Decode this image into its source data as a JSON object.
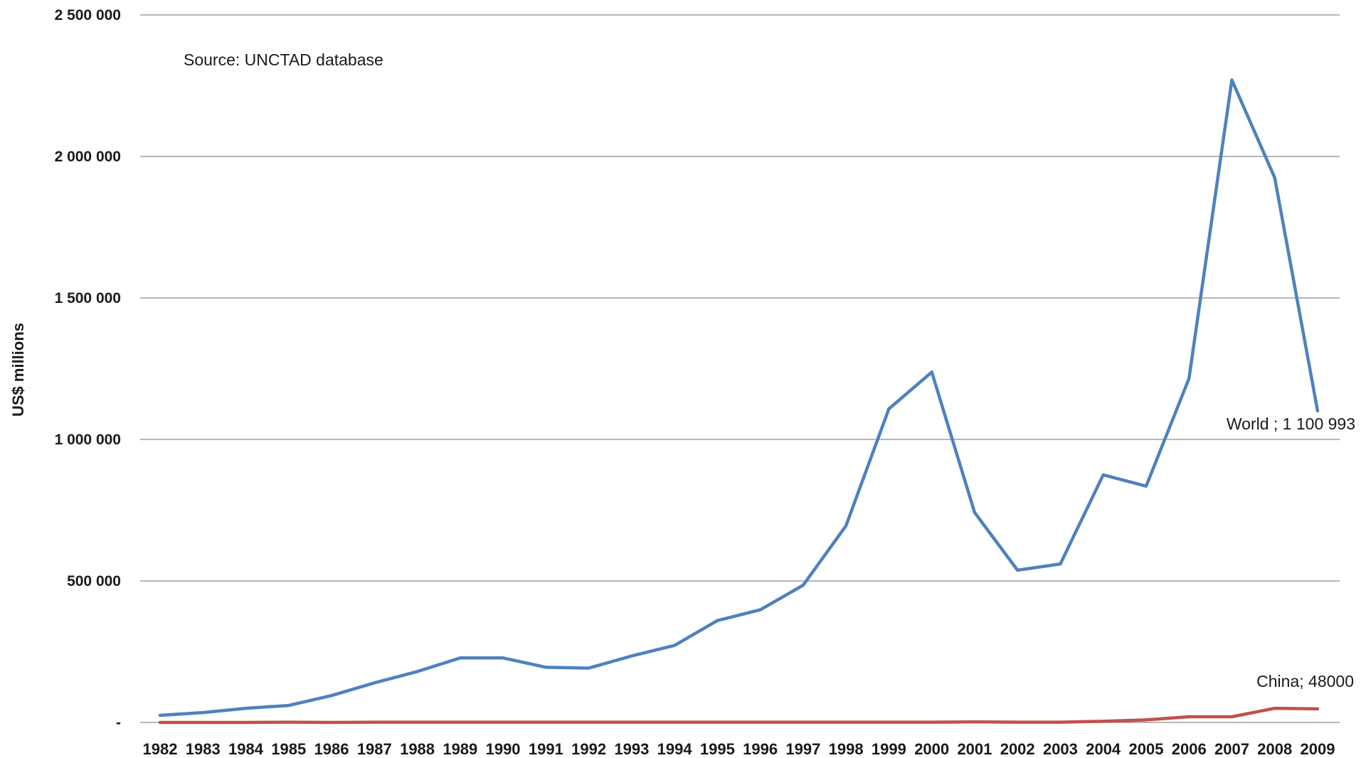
{
  "chart_data": {
    "type": "line",
    "ylabel": "US$ millions",
    "xlabel": "",
    "ylim": [
      0,
      2500000
    ],
    "yticks": [
      0,
      500000,
      1000000,
      1500000,
      2000000,
      2500000
    ],
    "ytick_labels": [
      "-",
      "500 000",
      "1 000 000",
      "1 500 000",
      "2 000 000",
      "2 500 000"
    ],
    "grid": true,
    "categories": [
      "1982",
      "1983",
      "1984",
      "1985",
      "1986",
      "1987",
      "1988",
      "1989",
      "1990",
      "1991",
      "1992",
      "1993",
      "1994",
      "1995",
      "1996",
      "1997",
      "1998",
      "1999",
      "2000",
      "2001",
      "2002",
      "2003",
      "2004",
      "2005",
      "2006",
      "2007",
      "2008",
      "2009"
    ],
    "series": [
      {
        "name": "World",
        "color": "#4f81bd",
        "values": [
          25000,
          35000,
          50000,
          60000,
          95000,
          140000,
          180000,
          228000,
          228000,
          195000,
          192000,
          235000,
          272000,
          360000,
          398000,
          485000,
          695000,
          1108000,
          1238000,
          742000,
          538000,
          560000,
          875000,
          835000,
          1215000,
          2270000,
          1925000,
          1100993
        ]
      },
      {
        "name": "China",
        "color": "#c0504d",
        "values": [
          0,
          0,
          0,
          1000,
          0,
          1000,
          1000,
          1000,
          1000,
          1000,
          1000,
          1000,
          1000,
          1000,
          1000,
          1000,
          1000,
          1000,
          1000,
          2000,
          1000,
          1000,
          4000,
          9000,
          20000,
          20000,
          50000,
          48000
        ]
      }
    ],
    "annotations": [
      {
        "text": "Source: UNCTAD database"
      },
      {
        "text": "World ; 1 100 993"
      },
      {
        "text": "China; 48000"
      }
    ]
  }
}
